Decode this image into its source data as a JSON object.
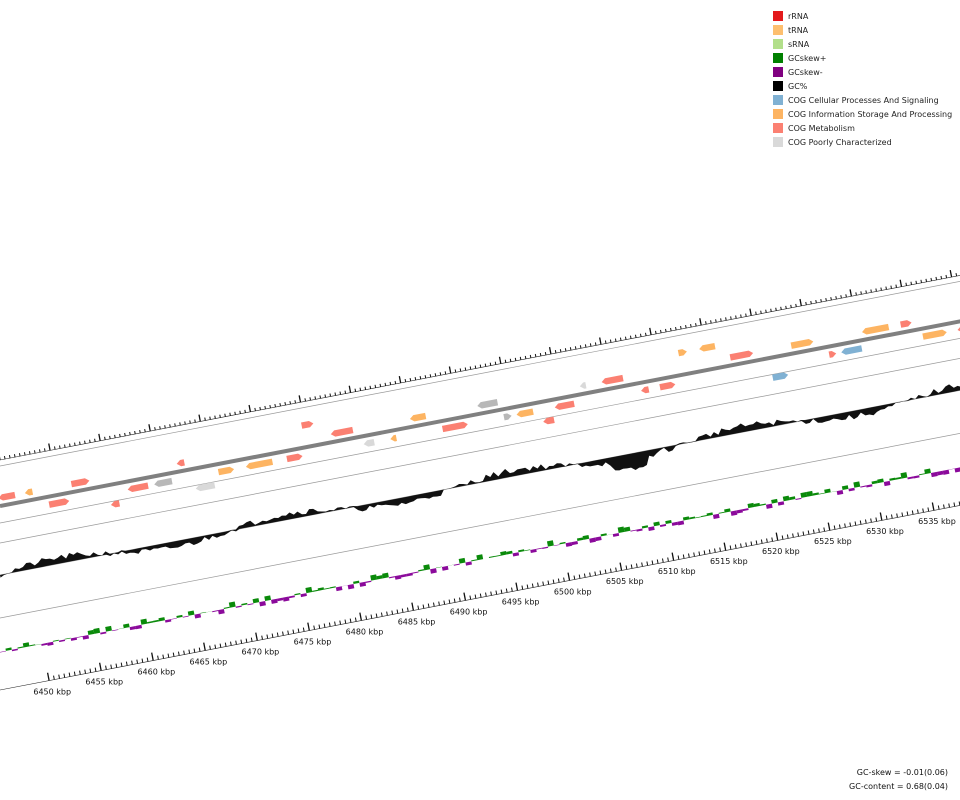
{
  "legend": [
    {
      "label": "rRNA",
      "color": "#e31a1c"
    },
    {
      "label": "tRNA",
      "color": "#fdbf6f"
    },
    {
      "label": "sRNA",
      "color": "#b2df8a"
    },
    {
      "label": "GCskew+",
      "color": "#008000"
    },
    {
      "label": "GCskew-",
      "color": "#800080"
    },
    {
      "label": "GC%",
      "color": "#000000"
    },
    {
      "label": "COG Cellular Processes And Signaling",
      "color": "#80b1d3"
    },
    {
      "label": "COG Information Storage And Processing",
      "color": "#fdb462"
    },
    {
      "label": "COG Metabolism",
      "color": "#fb8072"
    },
    {
      "label": "COG Poorly Characterized",
      "color": "#d9d9d9"
    }
  ],
  "stats": {
    "gc_skew": "GC-skew = -0.01(0.06)",
    "gc_content": "GC-content = 0.68(0.04)"
  },
  "scale": {
    "unit": "kbp",
    "major_ticks": [
      6450,
      6455,
      6460,
      6465,
      6470,
      6475,
      6480,
      6485,
      6490,
      6495,
      6500,
      6505,
      6510,
      6515,
      6520,
      6525,
      6530,
      6535
    ],
    "labels": [
      "6450 kbp",
      "6455 kbp",
      "6460 kbp",
      "6465 kbp",
      "6470 kbp",
      "6475 kbp",
      "6480 kbp",
      "6485 kbp",
      "6490 kbp",
      "6495 kbp",
      "6500 kbp",
      "6505 kbp",
      "6510 kbp",
      "6515 kbp",
      "6520 kbp",
      "6525 kbp",
      "6530 kbp",
      "6535 kbp"
    ]
  },
  "colors": {
    "backbone": "#808080",
    "gc": "#111111",
    "skew_pos": "#0a8a0a",
    "skew_neg": "#8b0a9b",
    "cds": "#fb8072",
    "cog_info": "#fdb462",
    "cog_cell": "#80b1d3",
    "cog_poor": "#d9d9d9",
    "grey_feature": "#b8b8b8"
  }
}
